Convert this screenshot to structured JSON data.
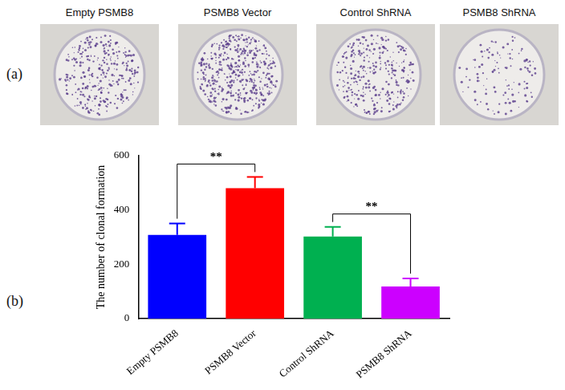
{
  "panels": {
    "a": {
      "label": "(a)",
      "titles": [
        "Empty PSMB8",
        "PSMB8 Vector",
        "Control ShRNA",
        "PSMB8 ShRNA"
      ]
    },
    "b": {
      "label": "(b)"
    }
  },
  "chart_data": {
    "type": "bar",
    "y_label": "The number of clonal formation",
    "categories": [
      "Empty PSMB8",
      "PSMB8 Vector",
      "Control ShRNA",
      "PSMB8 ShRNA"
    ],
    "values": [
      308,
      480,
      302,
      118
    ],
    "errors": [
      42,
      42,
      36,
      30
    ],
    "colors": [
      "#0000ff",
      "#ff0000",
      "#00b050",
      "#cc00ff"
    ],
    "ylim": [
      0,
      600
    ],
    "yticks": [
      0,
      200,
      400,
      600
    ],
    "grid": false,
    "annotations": [
      {
        "between": [
          "Empty PSMB8",
          "PSMB8 Vector"
        ],
        "text": "**"
      },
      {
        "between": [
          "Control ShRNA",
          "PSMB8 ShRNA"
        ],
        "text": "**"
      }
    ]
  }
}
